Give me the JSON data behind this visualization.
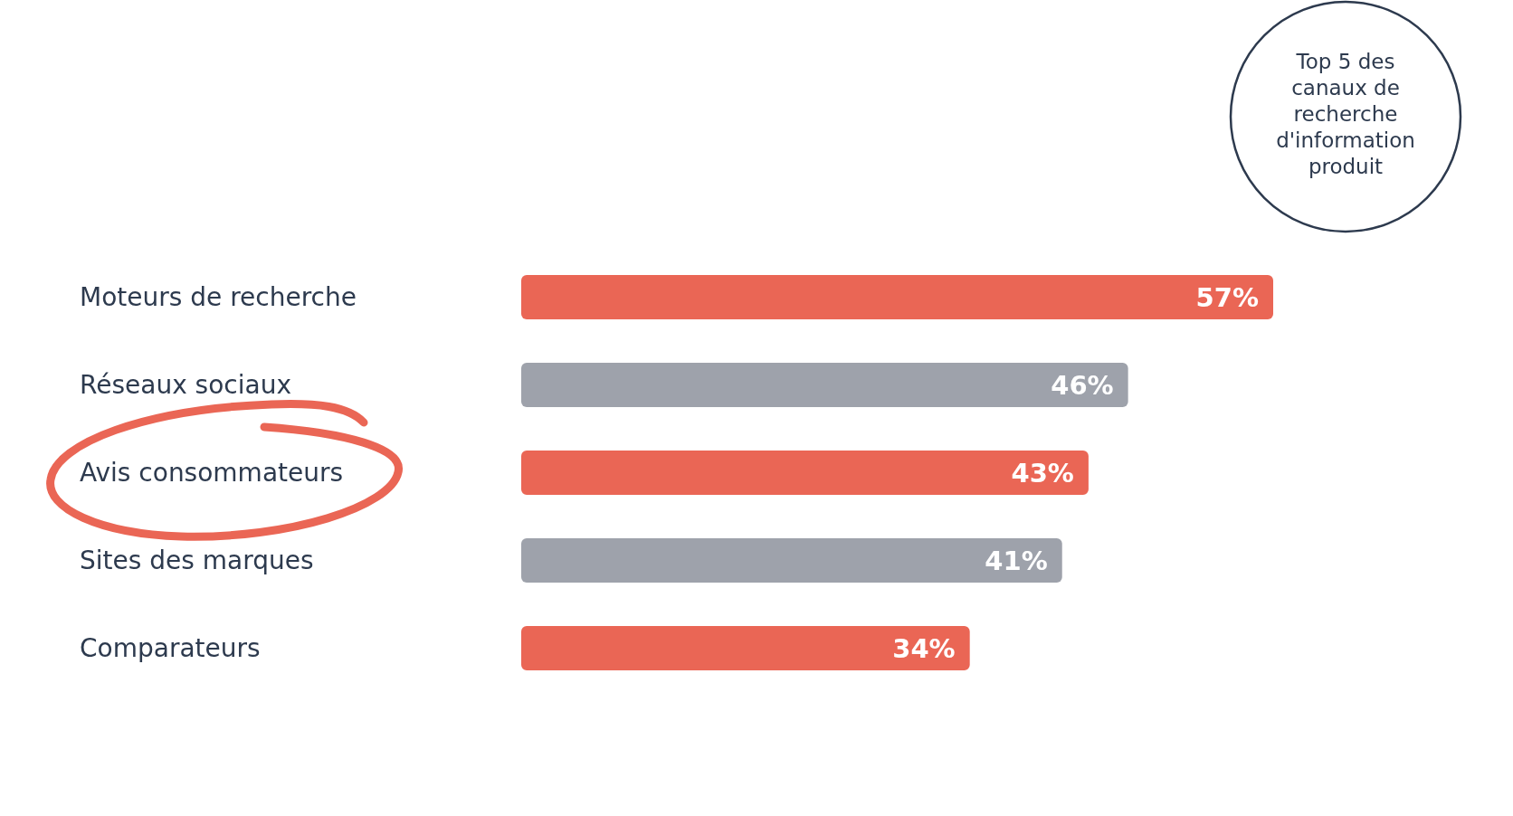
{
  "chart_data": {
    "type": "bar",
    "orientation": "horizontal",
    "title": "Top 5 des canaux de recherche d'information produit",
    "categories": [
      "Moteurs de recherche",
      "Réseaux sociaux",
      "Avis consommateurs",
      "Sites des marques",
      "Comparateurs"
    ],
    "values": [
      57,
      46,
      43,
      41,
      34
    ],
    "colors": [
      "#ea6655",
      "#9ea2ab",
      "#ea6655",
      "#9ea2ab",
      "#ea6655"
    ],
    "value_labels": [
      "57%",
      "46%",
      "43%",
      "41%",
      "34%"
    ],
    "tick_labels": "y"
  }
}
